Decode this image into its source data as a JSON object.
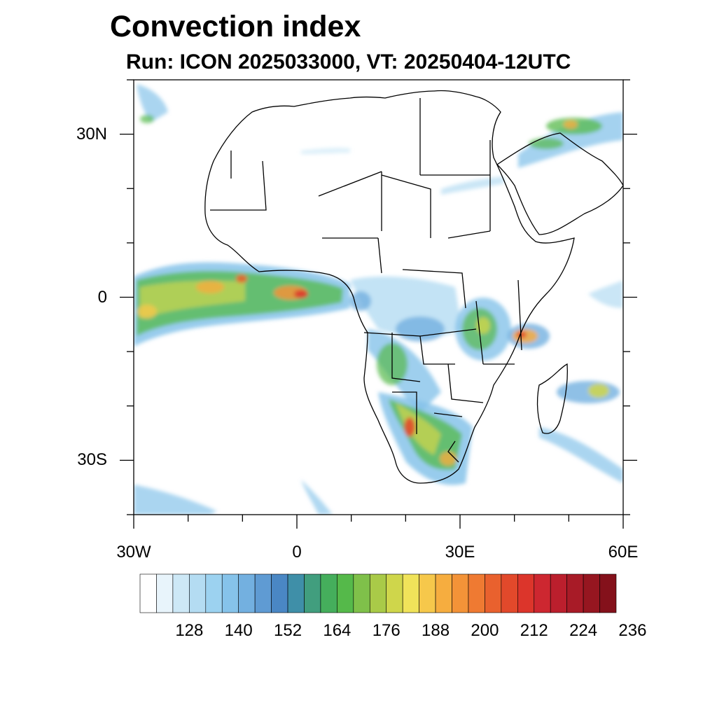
{
  "title": "Convection index",
  "subtitle": "Run: ICON 2025033000,  VT: 20250404-12UTC",
  "map": {
    "region_lon": [
      -30,
      60
    ],
    "region_lat": [
      -40,
      40
    ],
    "lat_ticks": [
      {
        "value": 30,
        "label": "30N"
      },
      {
        "value": 0,
        "label": "0"
      },
      {
        "value": -30,
        "label": "30S"
      }
    ],
    "lon_ticks": [
      {
        "value": -30,
        "label": "30W"
      },
      {
        "value": 0,
        "label": "0"
      },
      {
        "value": 30,
        "label": "30E"
      },
      {
        "value": 60,
        "label": "60E"
      }
    ],
    "colors": {
      "border": "#000000",
      "ocean": "#ffffff"
    }
  },
  "colorbar": {
    "labels": [
      "128",
      "140",
      "152",
      "164",
      "176",
      "188",
      "200",
      "212",
      "224",
      "236"
    ],
    "colors": [
      "#ffffff",
      "#e8f4fb",
      "#cde8f6",
      "#b4dcf2",
      "#9cd2f0",
      "#86c3ea",
      "#73b0e0",
      "#5f9bd3",
      "#4a87c4",
      "#3f8fa8",
      "#419e7e",
      "#45ae5c",
      "#55b94a",
      "#7fc04a",
      "#a9ca48",
      "#cfd64b",
      "#f0e35a",
      "#f6c84b",
      "#f6ad3f",
      "#f39338",
      "#ef7a32",
      "#e9612e",
      "#e2492b",
      "#dc352b",
      "#cd2730",
      "#bb1f2d",
      "#a81b27",
      "#961620",
      "#84111b"
    ]
  }
}
